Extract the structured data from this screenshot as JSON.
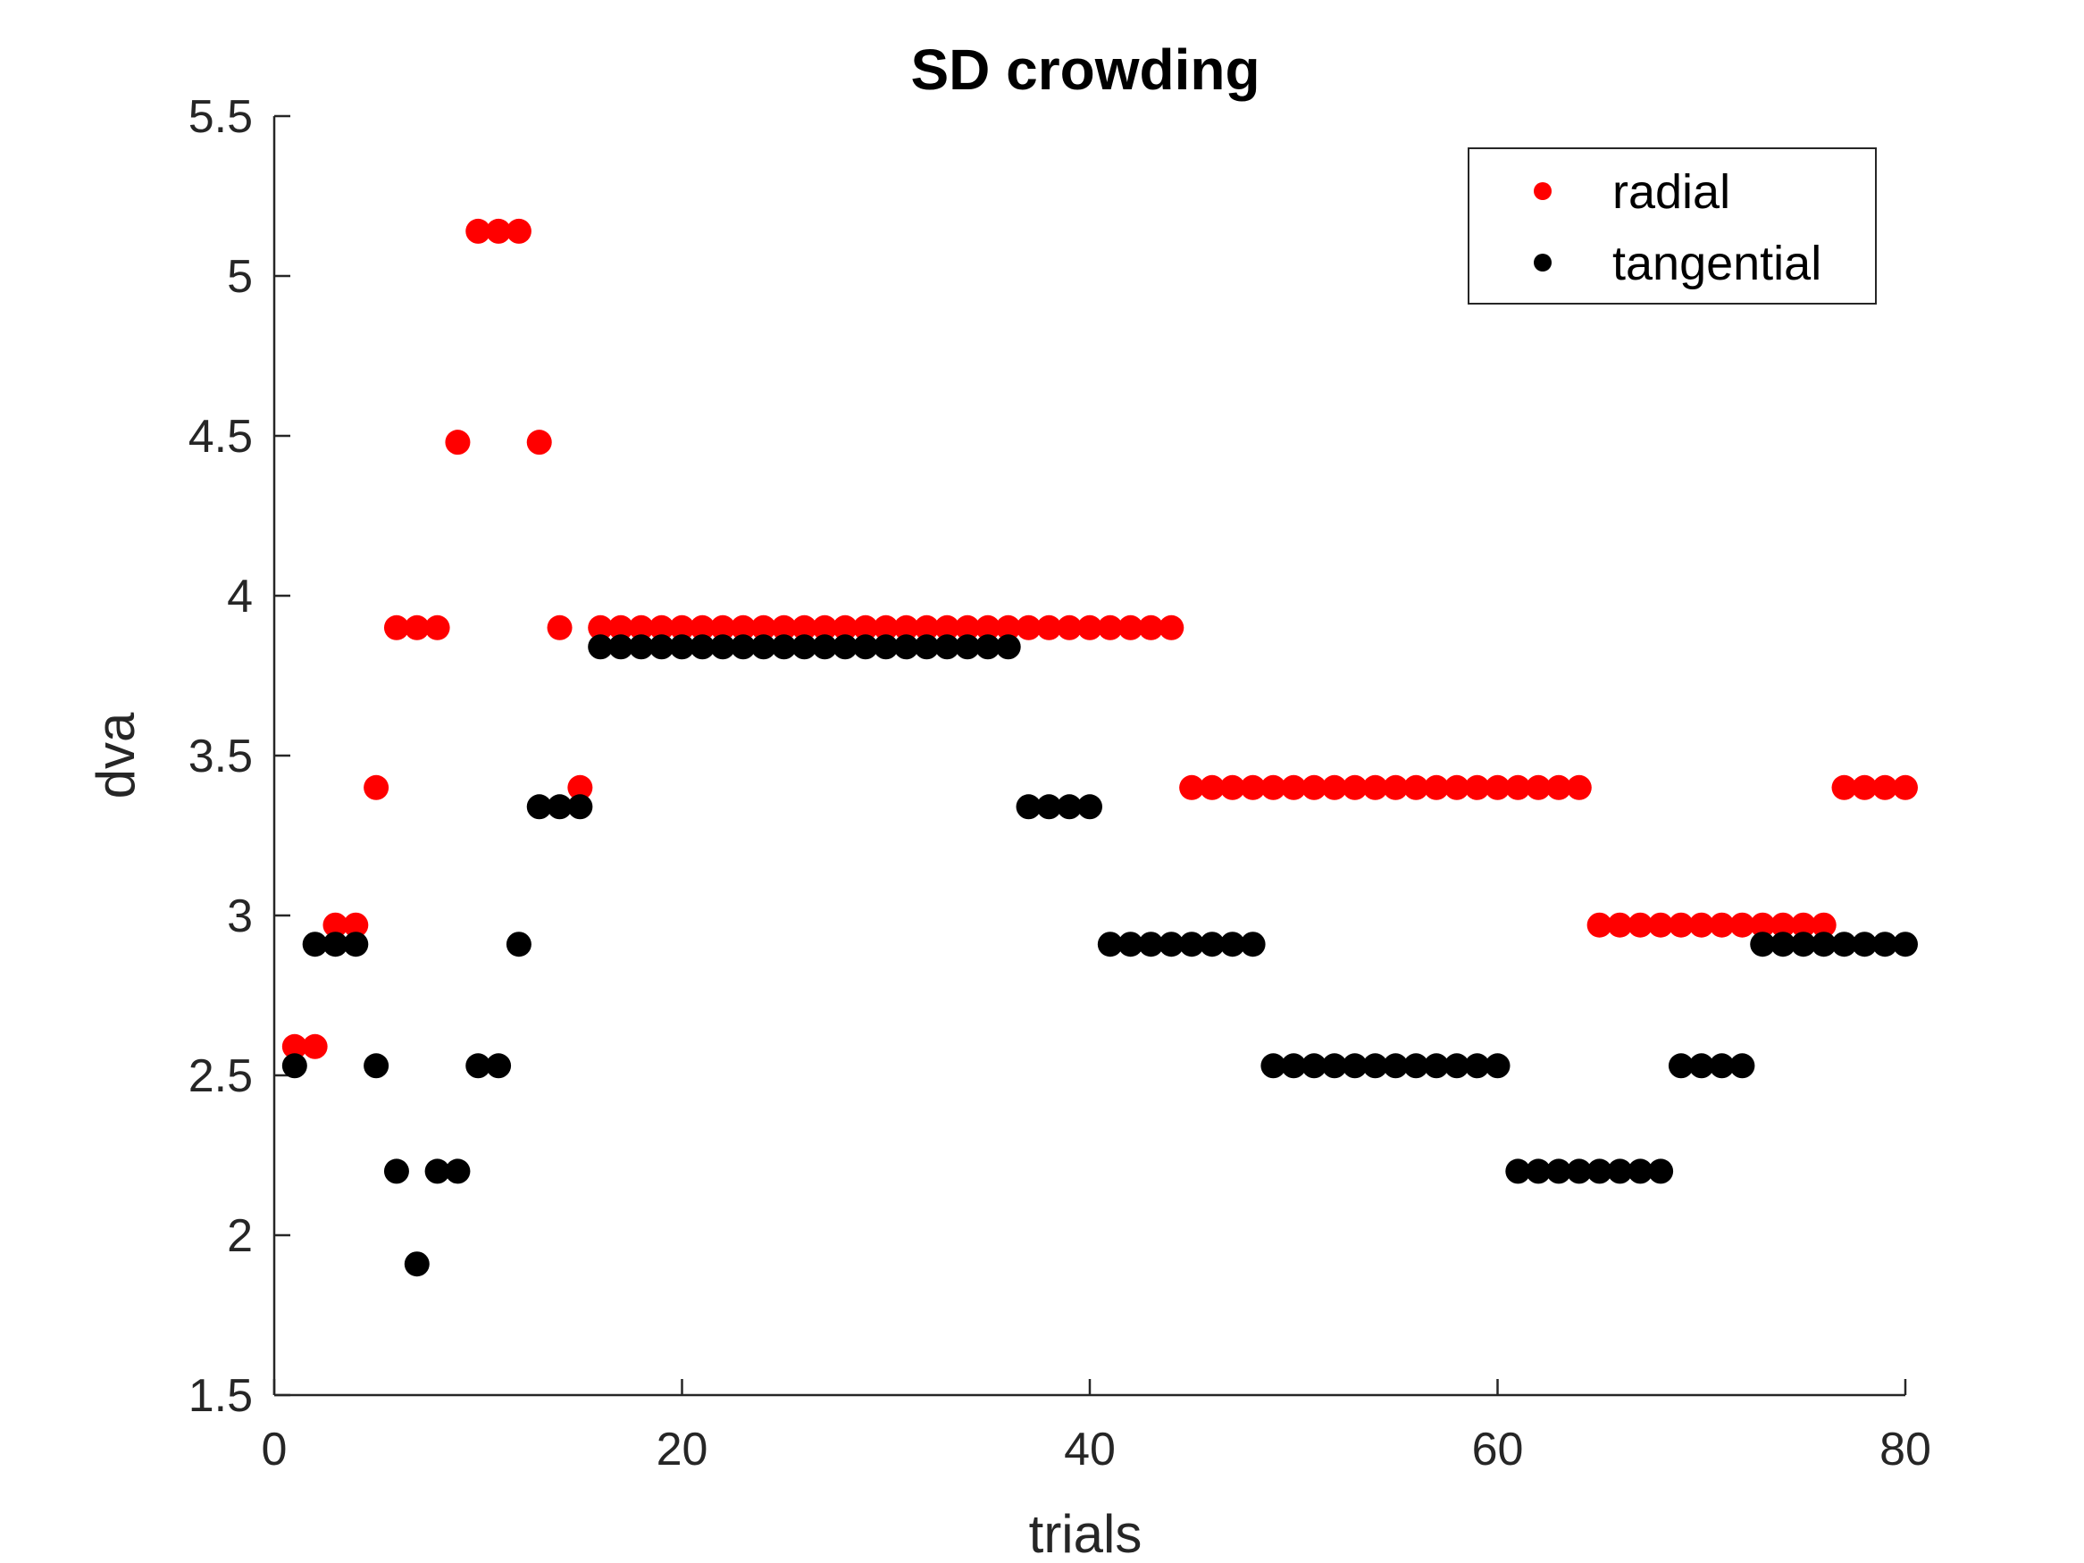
{
  "chart_data": {
    "type": "scatter",
    "title": "SD crowding",
    "xlabel": "trials",
    "ylabel": "dva",
    "xlim": [
      0,
      80
    ],
    "ylim": [
      1.5,
      5.5
    ],
    "xticks": [
      0,
      20,
      40,
      60,
      80
    ],
    "yticks": [
      1.5,
      2,
      2.5,
      3,
      3.5,
      4,
      4.5,
      5,
      5.5
    ],
    "xtick_labels": [
      "0",
      "20",
      "40",
      "60",
      "80"
    ],
    "ytick_labels": [
      "1.5",
      "2",
      "2.5",
      "3",
      "3.5",
      "4",
      "4.5",
      "5",
      "5.5"
    ],
    "grid": false,
    "legend_position": "top-right",
    "series": [
      {
        "name": "radial",
        "color": "#ff0000",
        "x": [
          1,
          2,
          3,
          4,
          5,
          6,
          7,
          8,
          9,
          10,
          11,
          12,
          13,
          14,
          15,
          16,
          17,
          18,
          19,
          20,
          21,
          22,
          23,
          24,
          25,
          26,
          27,
          28,
          29,
          30,
          31,
          32,
          33,
          34,
          35,
          36,
          37,
          38,
          39,
          40,
          41,
          42,
          43,
          44,
          45,
          46,
          47,
          48,
          49,
          50,
          51,
          52,
          53,
          54,
          55,
          56,
          57,
          58,
          59,
          60,
          61,
          62,
          63,
          64,
          65,
          66,
          67,
          68,
          69,
          70,
          71,
          72,
          73,
          74,
          75,
          76,
          77,
          78,
          79,
          80
        ],
        "y": [
          2.59,
          2.59,
          2.97,
          2.97,
          3.4,
          3.9,
          3.9,
          3.9,
          4.48,
          5.14,
          5.14,
          5.14,
          4.48,
          3.9,
          3.4,
          3.9,
          3.9,
          3.9,
          3.9,
          3.9,
          3.9,
          3.9,
          3.9,
          3.9,
          3.9,
          3.9,
          3.9,
          3.9,
          3.9,
          3.9,
          3.9,
          3.9,
          3.9,
          3.9,
          3.9,
          3.9,
          3.9,
          3.9,
          3.9,
          3.9,
          3.9,
          3.9,
          3.9,
          3.9,
          3.4,
          3.4,
          3.4,
          3.4,
          3.4,
          3.4,
          3.4,
          3.4,
          3.4,
          3.4,
          3.4,
          3.4,
          3.4,
          3.4,
          3.4,
          3.4,
          3.4,
          3.4,
          3.4,
          3.4,
          2.97,
          2.97,
          2.97,
          2.97,
          2.97,
          2.97,
          2.97,
          2.97,
          2.97,
          2.97,
          2.97,
          2.97,
          3.4,
          3.4,
          3.4,
          3.4
        ]
      },
      {
        "name": "tangential",
        "color": "#000000",
        "x": [
          1,
          2,
          3,
          4,
          5,
          6,
          7,
          8,
          9,
          10,
          11,
          12,
          13,
          14,
          15,
          16,
          17,
          18,
          19,
          20,
          21,
          22,
          23,
          24,
          25,
          26,
          27,
          28,
          29,
          30,
          31,
          32,
          33,
          34,
          35,
          36,
          37,
          38,
          39,
          40,
          41,
          42,
          43,
          44,
          45,
          46,
          47,
          48,
          49,
          50,
          51,
          52,
          53,
          54,
          55,
          56,
          57,
          58,
          59,
          60,
          61,
          62,
          63,
          64,
          65,
          66,
          67,
          68,
          69,
          70,
          71,
          72,
          73,
          74,
          75,
          76,
          77,
          78,
          79,
          80
        ],
        "y": [
          2.53,
          2.91,
          2.91,
          2.91,
          2.53,
          2.2,
          1.91,
          2.2,
          2.2,
          2.53,
          2.53,
          2.91,
          3.34,
          3.34,
          3.34,
          3.84,
          3.84,
          3.84,
          3.84,
          3.84,
          3.84,
          3.84,
          3.84,
          3.84,
          3.84,
          3.84,
          3.84,
          3.84,
          3.84,
          3.84,
          3.84,
          3.84,
          3.84,
          3.84,
          3.84,
          3.84,
          3.34,
          3.34,
          3.34,
          3.34,
          2.91,
          2.91,
          2.91,
          2.91,
          2.91,
          2.91,
          2.91,
          2.91,
          2.53,
          2.53,
          2.53,
          2.53,
          2.53,
          2.53,
          2.53,
          2.53,
          2.53,
          2.53,
          2.53,
          2.53,
          2.2,
          2.2,
          2.2,
          2.2,
          2.2,
          2.2,
          2.2,
          2.2,
          2.53,
          2.53,
          2.53,
          2.53,
          2.91,
          2.91,
          2.91,
          2.91,
          2.91,
          2.91,
          2.91,
          2.91
        ]
      }
    ]
  }
}
